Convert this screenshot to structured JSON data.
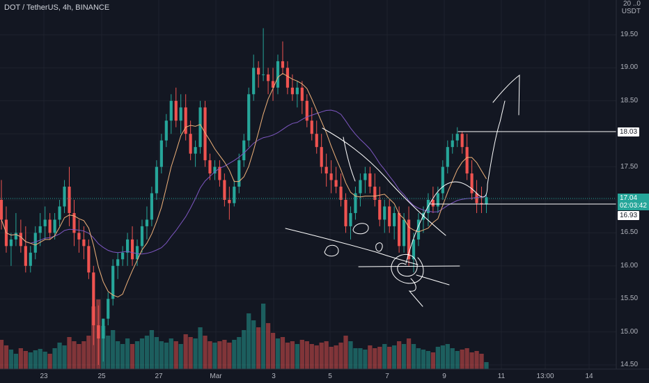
{
  "header": {
    "symbol": "DOT / TetherUS, 4h, BINANCE"
  },
  "price_axis": {
    "currency_top": "20 ..0",
    "currency": "USDT",
    "ticks": [
      "19.50",
      "19.00",
      "18.50",
      "18.00",
      "17.50",
      "17.00",
      "16.50",
      "16.00",
      "15.50",
      "15.00",
      "14.50"
    ]
  },
  "time_axis": {
    "ticks": [
      "23",
      "25",
      "27",
      "Mar",
      "3",
      "5",
      "7",
      "9",
      "11",
      "13:00",
      "14"
    ]
  },
  "price_tags": {
    "level_high": "18.03",
    "current_price": "17.04",
    "countdown": "02:03:42",
    "level_low": "16.93"
  },
  "colors": {
    "bull": "#26a69a",
    "bear": "#ef5350",
    "ma_fast": "#f0b27a",
    "ma_slow": "#7e57c2",
    "background": "#131722"
  },
  "chart_data": {
    "type": "candlestick",
    "y_range": [
      14.45,
      20.0
    ],
    "candles": [
      [
        17.0,
        17.3,
        16.55,
        16.7
      ],
      [
        16.7,
        16.9,
        16.2,
        16.3
      ],
      [
        16.3,
        16.5,
        16.0,
        16.4
      ],
      [
        16.4,
        16.8,
        16.3,
        16.5
      ],
      [
        16.5,
        16.7,
        16.2,
        16.3
      ],
      [
        16.3,
        16.6,
        15.9,
        16.0
      ],
      [
        16.0,
        16.3,
        15.9,
        16.2
      ],
      [
        16.2,
        16.6,
        16.1,
        16.5
      ],
      [
        16.5,
        16.8,
        16.3,
        16.6
      ],
      [
        16.6,
        16.9,
        16.4,
        16.7
      ],
      [
        16.7,
        16.8,
        16.4,
        16.5
      ],
      [
        16.5,
        16.8,
        16.4,
        16.7
      ],
      [
        16.7,
        17.0,
        16.6,
        16.9
      ],
      [
        16.9,
        17.3,
        16.8,
        17.2
      ],
      [
        17.2,
        17.5,
        16.6,
        16.8
      ],
      [
        16.8,
        17.0,
        16.3,
        16.5
      ],
      [
        16.5,
        16.7,
        16.2,
        16.4
      ],
      [
        16.4,
        16.6,
        16.1,
        16.3
      ],
      [
        16.3,
        16.4,
        15.8,
        15.9
      ],
      [
        15.9,
        16.0,
        14.8,
        15.1
      ],
      [
        15.1,
        15.4,
        14.5,
        14.9
      ],
      [
        14.9,
        15.2,
        14.55,
        15.2
      ],
      [
        15.2,
        15.6,
        15.1,
        15.5
      ],
      [
        15.5,
        16.1,
        15.4,
        16.0
      ],
      [
        16.0,
        16.2,
        15.8,
        16.1
      ],
      [
        16.1,
        16.3,
        16.0,
        16.2
      ],
      [
        16.2,
        16.5,
        16.0,
        16.4
      ],
      [
        16.4,
        16.6,
        16.0,
        16.1
      ],
      [
        16.1,
        16.4,
        16.0,
        16.3
      ],
      [
        16.3,
        16.7,
        16.2,
        16.6
      ],
      [
        16.6,
        16.9,
        16.4,
        16.7
      ],
      [
        16.7,
        17.2,
        16.6,
        17.1
      ],
      [
        17.1,
        17.6,
        17.0,
        17.5
      ],
      [
        17.5,
        18.0,
        17.4,
        17.9
      ],
      [
        17.9,
        18.3,
        17.8,
        18.2
      ],
      [
        18.2,
        18.6,
        18.0,
        18.5
      ],
      [
        18.5,
        18.7,
        18.1,
        18.2
      ],
      [
        18.2,
        18.6,
        18.0,
        18.4
      ],
      [
        18.4,
        18.6,
        17.9,
        18.0
      ],
      [
        18.0,
        18.2,
        17.6,
        17.7
      ],
      [
        17.7,
        17.9,
        17.5,
        17.8
      ],
      [
        17.8,
        18.5,
        17.7,
        18.4
      ],
      [
        18.4,
        18.5,
        17.5,
        17.6
      ],
      [
        17.6,
        17.7,
        17.3,
        17.4
      ],
      [
        17.4,
        17.6,
        17.3,
        17.5
      ],
      [
        17.5,
        17.6,
        17.2,
        17.3
      ],
      [
        17.3,
        17.4,
        16.9,
        17.0
      ],
      [
        17.0,
        17.2,
        16.7,
        16.95
      ],
      [
        16.95,
        17.3,
        16.9,
        17.2
      ],
      [
        17.2,
        17.7,
        17.1,
        17.6
      ],
      [
        17.6,
        18.0,
        17.5,
        17.9
      ],
      [
        17.9,
        18.7,
        17.8,
        18.6
      ],
      [
        18.6,
        19.2,
        18.5,
        19.0
      ],
      [
        19.0,
        19.1,
        18.7,
        18.9
      ],
      [
        18.9,
        19.6,
        18.8,
        18.9
      ],
      [
        18.9,
        19.0,
        18.6,
        18.8
      ],
      [
        18.8,
        19.0,
        18.5,
        18.7
      ],
      [
        18.7,
        19.2,
        18.6,
        19.1
      ],
      [
        19.1,
        19.4,
        18.9,
        19.0
      ],
      [
        19.0,
        19.1,
        18.6,
        18.7
      ],
      [
        18.7,
        18.9,
        18.5,
        18.6
      ],
      [
        18.6,
        18.8,
        18.4,
        18.7
      ],
      [
        18.7,
        18.8,
        18.3,
        18.5
      ],
      [
        18.5,
        18.6,
        18.1,
        18.2
      ],
      [
        18.2,
        18.4,
        17.9,
        18.0
      ],
      [
        18.0,
        18.2,
        17.7,
        17.8
      ],
      [
        17.8,
        18.0,
        17.4,
        17.5
      ],
      [
        17.5,
        17.7,
        17.2,
        17.4
      ],
      [
        17.4,
        17.6,
        17.1,
        17.3
      ],
      [
        17.3,
        17.5,
        17.1,
        17.2
      ],
      [
        17.2,
        17.4,
        16.9,
        17.0
      ],
      [
        17.0,
        17.1,
        16.5,
        16.6
      ],
      [
        16.6,
        16.9,
        16.4,
        16.8
      ],
      [
        16.8,
        17.2,
        16.7,
        17.1
      ],
      [
        17.1,
        17.4,
        16.9,
        17.3
      ],
      [
        17.3,
        17.5,
        17.1,
        17.4
      ],
      [
        17.4,
        17.5,
        17.1,
        17.2
      ],
      [
        17.2,
        17.4,
        16.9,
        17.0
      ],
      [
        17.0,
        17.2,
        16.6,
        16.7
      ],
      [
        16.7,
        17.0,
        16.5,
        16.9
      ],
      [
        16.9,
        17.0,
        16.5,
        16.6
      ],
      [
        16.6,
        16.9,
        16.4,
        16.8
      ],
      [
        16.8,
        16.9,
        16.2,
        16.3
      ],
      [
        16.3,
        16.8,
        16.2,
        16.7
      ],
      [
        16.7,
        16.9,
        16.0,
        16.1
      ],
      [
        16.1,
        16.5,
        15.9,
        16.4
      ],
      [
        16.4,
        16.8,
        16.3,
        16.7
      ],
      [
        16.7,
        16.9,
        16.5,
        16.8
      ],
      [
        16.8,
        17.1,
        16.6,
        17.0
      ],
      [
        17.0,
        17.2,
        16.8,
        16.9
      ],
      [
        16.9,
        17.2,
        16.8,
        17.1
      ],
      [
        17.1,
        17.6,
        17.0,
        17.5
      ],
      [
        17.5,
        17.9,
        17.4,
        17.8
      ],
      [
        17.8,
        18.0,
        17.7,
        17.9
      ],
      [
        17.9,
        18.1,
        17.8,
        18.0
      ],
      [
        18.0,
        18.03,
        17.7,
        17.8
      ],
      [
        17.8,
        18.0,
        17.3,
        17.4
      ],
      [
        17.4,
        17.6,
        17.0,
        17.1
      ],
      [
        17.1,
        17.3,
        16.8,
        16.95
      ],
      [
        16.95,
        17.2,
        16.8,
        16.93
      ],
      [
        16.93,
        17.1,
        16.8,
        17.04
      ]
    ],
    "volume": [
      42,
      34,
      28,
      22,
      30,
      26,
      24,
      27,
      29,
      25,
      22,
      30,
      38,
      34,
      46,
      40,
      36,
      40,
      48,
      90,
      100,
      62,
      48,
      56,
      40,
      36,
      44,
      36,
      40,
      44,
      48,
      56,
      46,
      40,
      38,
      44,
      40,
      36,
      50,
      46,
      44,
      60,
      48,
      40,
      38,
      40,
      42,
      38,
      42,
      46,
      56,
      80,
      70,
      60,
      94,
      66,
      52,
      44,
      46,
      38,
      40,
      36,
      42,
      40,
      36,
      34,
      38,
      40,
      32,
      34,
      38,
      48,
      40,
      30,
      30,
      28,
      34,
      30,
      32,
      36,
      32,
      34,
      40,
      36,
      44,
      36,
      30,
      28,
      26,
      24,
      32,
      34,
      36,
      30,
      26,
      28,
      30,
      24,
      26,
      22,
      10
    ],
    "volume_max": 100
  }
}
